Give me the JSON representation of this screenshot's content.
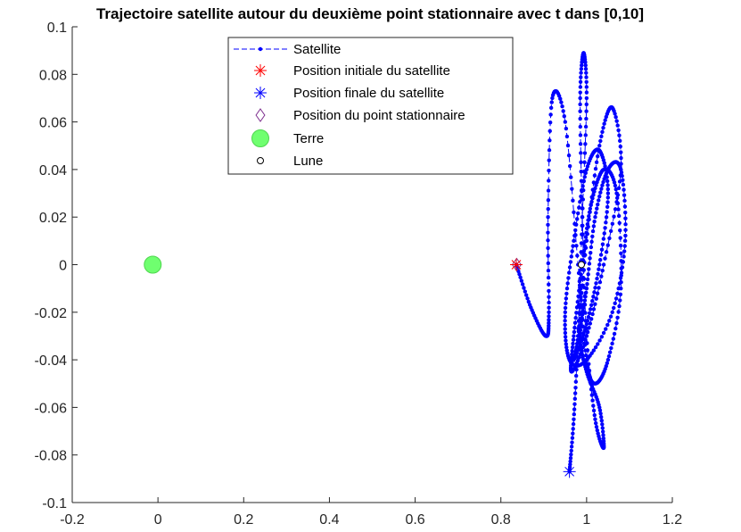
{
  "chart_data": {
    "type": "scatter",
    "title": "Trajectoire satellite autour du deuxième point stationnaire avec t dans [0,10]",
    "xlabel": "",
    "ylabel": "",
    "xlim": [
      -0.2,
      1.2
    ],
    "ylim": [
      -0.1,
      0.1
    ],
    "x_ticks": [
      -0.2,
      0,
      0.2,
      0.4,
      0.6,
      0.8,
      1,
      1.2
    ],
    "y_ticks": [
      -0.1,
      -0.08,
      -0.06,
      -0.04,
      -0.02,
      0,
      0.02,
      0.04,
      0.06,
      0.08,
      0.1
    ],
    "x_tick_labels": [
      "-0.2",
      "0",
      "0.2",
      "0.4",
      "0.6",
      "0.8",
      "1",
      "1.2"
    ],
    "y_tick_labels": [
      "-0.1",
      "-0.08",
      "-0.06",
      "-0.04",
      "-0.02",
      "0",
      "0.02",
      "0.04",
      "0.06",
      "0.08",
      "0.1"
    ],
    "grid": false,
    "legend_position": "top-center",
    "series": [
      {
        "name": "Satellite",
        "style": "dashed line with dot markers",
        "color": "#0000ff",
        "trajectory_keypoints": [
          [
            0.836,
            0.0
          ],
          [
            0.87,
            -0.018
          ],
          [
            0.905,
            -0.03
          ],
          [
            0.912,
            -0.02
          ],
          [
            0.91,
            0.02
          ],
          [
            0.92,
            0.07
          ],
          [
            0.95,
            0.06
          ],
          [
            0.98,
            0.0
          ],
          [
            1.0,
            -0.04
          ],
          [
            1.02,
            -0.05
          ],
          [
            1.05,
            -0.04
          ],
          [
            1.08,
            -0.01
          ],
          [
            1.07,
            0.03
          ],
          [
            1.04,
            0.04
          ],
          [
            1.01,
            0.025
          ],
          [
            0.99,
            0.0
          ],
          [
            0.97,
            -0.03
          ],
          [
            0.965,
            -0.045
          ],
          [
            1.0,
            -0.03
          ],
          [
            1.04,
            0.0
          ],
          [
            1.08,
            0.04
          ],
          [
            1.06,
            0.066
          ],
          [
            1.03,
            0.05
          ],
          [
            1.0,
            0.01
          ],
          [
            0.98,
            -0.03
          ],
          [
            0.97,
            -0.04
          ],
          [
            1.0,
            -0.025
          ],
          [
            1.03,
            0.0
          ],
          [
            1.05,
            0.03
          ],
          [
            1.03,
            0.048
          ],
          [
            1.0,
            0.04
          ],
          [
            0.97,
            0.01
          ],
          [
            0.95,
            -0.02
          ],
          [
            0.96,
            -0.04
          ],
          [
            1.0,
            -0.04
          ],
          [
            1.06,
            -0.02
          ],
          [
            1.09,
            0.01
          ],
          [
            1.08,
            0.04
          ],
          [
            1.05,
            0.04
          ],
          [
            1.02,
            0.02
          ],
          [
            1.0,
            -0.01
          ],
          [
            0.985,
            -0.03
          ],
          [
            1.0,
            -0.045
          ],
          [
            1.03,
            -0.06
          ],
          [
            1.04,
            -0.077
          ],
          [
            1.02,
            -0.065
          ],
          [
            1.0,
            -0.03
          ],
          [
            0.99,
            0.02
          ],
          [
            0.985,
            0.07
          ],
          [
            0.993,
            0.089
          ],
          [
            1.0,
            0.07
          ],
          [
            0.99,
            0.02
          ],
          [
            0.98,
            -0.03
          ],
          [
            0.97,
            -0.065
          ],
          [
            0.96,
            -0.087
          ]
        ]
      },
      {
        "name": "Position initiale du satellite",
        "marker": "asterisk",
        "color": "#ff0000",
        "x": 0.836,
        "y": 0.0
      },
      {
        "name": "Position finale du satellite",
        "marker": "asterisk",
        "color": "#0000ff",
        "x": 0.96,
        "y": -0.087
      },
      {
        "name": "Position du point stationnaire",
        "marker": "diamond",
        "color": "#7e2f8e",
        "x": 0.8369,
        "y": 0.0
      },
      {
        "name": "Terre",
        "marker": "filled-circle",
        "color": "#6fff6f",
        "x": -0.0122,
        "y": 0.0
      },
      {
        "name": "Lune",
        "marker": "open-circle",
        "color": "#000000",
        "x": 0.9878,
        "y": 0.0
      }
    ]
  }
}
